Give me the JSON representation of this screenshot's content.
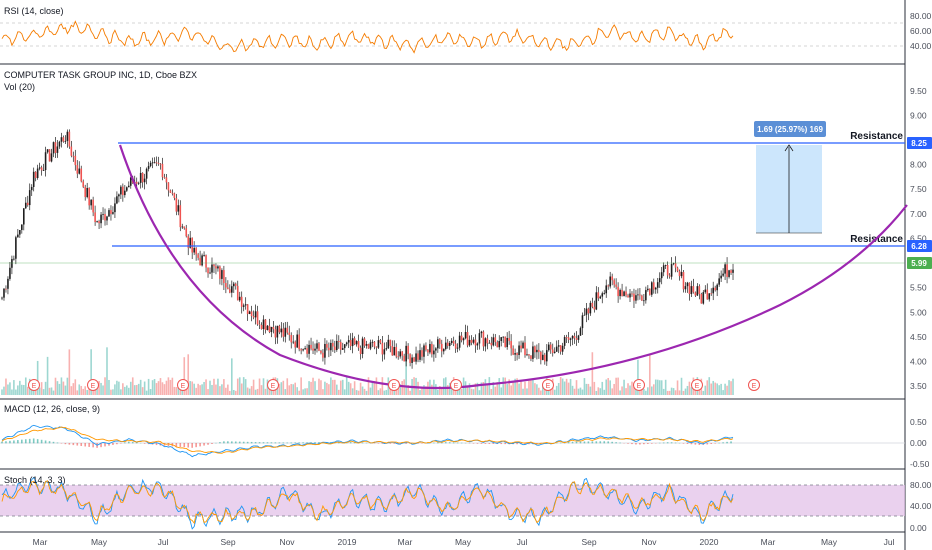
{
  "symbol": {
    "title": "COMPUTER TASK GROUP INC, 1D, Cboe BZX",
    "vol_label": "Vol (20)"
  },
  "colors": {
    "up": "#26a69a",
    "down": "#ef5350",
    "candle": "#1e1e1e",
    "resistance": "#2962ff",
    "cup": "#9c27b0",
    "price_tag": "#2962ff",
    "last_tag": "#4caf50",
    "rsi": "#f57c00",
    "macd": "#2196f3",
    "signal": "#ff9800",
    "stoch_k": "#2196f3",
    "stoch_d": "#ff9800",
    "stoch_band": "#e1bee7"
  },
  "panes": {
    "rsi": {
      "label": "RSI (14, close)",
      "ticks": [
        "80.00",
        "60.00",
        "40.00"
      ]
    },
    "main": {
      "ticks": [
        "9.50",
        "9.00",
        "8.50",
        "8.00",
        "7.50",
        "7.00",
        "6.50",
        "6.00",
        "5.50",
        "5.00",
        "4.50",
        "4.00",
        "3.50"
      ]
    },
    "macd": {
      "label": "MACD (12, 26, close, 9)",
      "ticks": [
        "0.50",
        "0.00",
        "-0.50"
      ]
    },
    "stoch": {
      "label": "Stoch (14, 3, 3)",
      "ticks": [
        "80.00",
        "40.00",
        "0.00"
      ]
    }
  },
  "time_axis": [
    "Mar",
    "May",
    "Jul",
    "Sep",
    "Nov",
    "2019",
    "Mar",
    "May",
    "Jul",
    "Sep",
    "Nov",
    "2020",
    "Mar",
    "May",
    "Jul"
  ],
  "annotations": {
    "resistance_upper": "Resistance",
    "resistance_lower": "Resistance",
    "measure": "1.69 (25.97%) 169",
    "price_upper": "8.25",
    "price_lower": "6.28",
    "price_last": "5.99",
    "earnings": "E"
  },
  "chart_data": [
    {
      "type": "candlestick",
      "title": "COMPUTER TASK GROUP INC, 1D, Cboe BZX",
      "x": [
        "2018-02",
        "2018-03",
        "2018-04",
        "2018-05",
        "2018-06",
        "2018-07",
        "2018-08",
        "2018-09",
        "2018-10",
        "2018-11",
        "2018-12",
        "2019-01",
        "2019-02",
        "2019-03",
        "2019-04",
        "2019-05",
        "2019-06",
        "2019-07",
        "2019-08",
        "2019-09",
        "2019-10",
        "2019-11",
        "2019-12",
        "2020-01"
      ],
      "close": [
        5.3,
        7.8,
        8.6,
        6.8,
        7.6,
        8.0,
        6.2,
        5.7,
        4.9,
        4.5,
        4.2,
        4.3,
        4.3,
        4.1,
        4.4,
        4.5,
        4.3,
        4.1,
        4.5,
        5.6,
        5.3,
        5.9,
        5.3,
        5.99
      ],
      "ylim": [
        3.4,
        9.8
      ],
      "levels": [
        {
          "name": "Resistance",
          "value": 8.25
        },
        {
          "name": "Resistance",
          "value": 6.28
        }
      ],
      "measure": {
        "from": 6.56,
        "to": 8.25,
        "change": 1.69,
        "percent": 25.97,
        "bars": 169
      },
      "last": 5.99
    },
    {
      "type": "line",
      "title": "RSI (14, close)",
      "ylim": [
        30,
        90
      ],
      "levels": [
        70,
        30
      ],
      "values": [
        52,
        58,
        66,
        61,
        50,
        55,
        60,
        44,
        48,
        52,
        47,
        55,
        51,
        46,
        54,
        50,
        57,
        49,
        47,
        62,
        55,
        60,
        48,
        63
      ]
    },
    {
      "type": "line",
      "title": "MACD (12, 26, close, 9)",
      "ylim": [
        -0.55,
        0.55
      ],
      "series": [
        {
          "name": "MACD",
          "values": [
            0.05,
            0.35,
            0.3,
            -0.05,
            0.05,
            -0.05,
            -0.3,
            -0.2,
            -0.1,
            -0.08,
            -0.02,
            0.02,
            -0.01,
            -0.03,
            0.04,
            0.02,
            -0.02,
            -0.05,
            0.05,
            0.12,
            0.03,
            0.08,
            -0.03,
            0.12
          ]
        },
        {
          "name": "Signal",
          "values": [
            0.02,
            0.25,
            0.32,
            0.05,
            0.02,
            0.0,
            -0.2,
            -0.24,
            -0.12,
            -0.09,
            -0.04,
            0.0,
            0.0,
            -0.02,
            0.02,
            0.03,
            0.0,
            -0.03,
            0.02,
            0.08,
            0.06,
            0.06,
            0.01,
            0.08
          ]
        }
      ]
    },
    {
      "type": "line",
      "title": "Stoch (14, 3, 3)",
      "ylim": [
        0,
        100
      ],
      "levels": [
        80,
        20
      ],
      "series": [
        {
          "name": "%K",
          "values": [
            60,
            85,
            70,
            20,
            75,
            80,
            15,
            25,
            30,
            70,
            20,
            60,
            40,
            75,
            30,
            80,
            25,
            20,
            85,
            70,
            40,
            75,
            20,
            70
          ]
        },
        {
          "name": "%D",
          "values": [
            55,
            80,
            72,
            25,
            70,
            78,
            20,
            22,
            28,
            65,
            25,
            55,
            45,
            70,
            35,
            75,
            28,
            22,
            80,
            72,
            45,
            70,
            25,
            65
          ]
        }
      ]
    }
  ]
}
